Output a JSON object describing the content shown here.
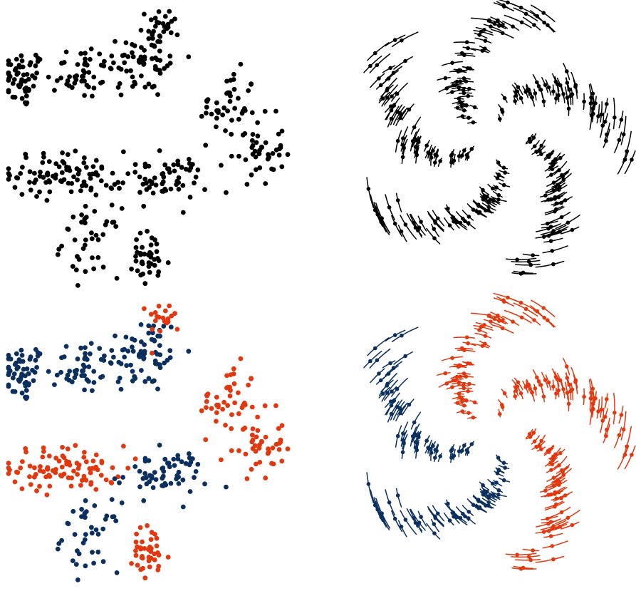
{
  "figure": {
    "colors": {
      "black": "#000000",
      "navy": "#0b2f5e",
      "orange": "#e2380f"
    }
  },
  "chart_data": [
    {
      "type": "scatter",
      "panel": "top-left",
      "color_mode": "single",
      "clusters": [
        {
          "cx": 0.06,
          "cy": 0.75,
          "sx": 0.04,
          "sy": 0.05,
          "n": 55,
          "color": "black"
        },
        {
          "cx": 0.26,
          "cy": 0.78,
          "sx": 0.06,
          "sy": 0.05,
          "n": 45,
          "color": "black"
        },
        {
          "cx": 0.48,
          "cy": 0.82,
          "sx": 0.07,
          "sy": 0.07,
          "n": 70,
          "color": "black"
        },
        {
          "cx": 0.56,
          "cy": 0.95,
          "sx": 0.03,
          "sy": 0.03,
          "n": 20,
          "color": "black"
        },
        {
          "cx": 0.78,
          "cy": 0.66,
          "sx": 0.05,
          "sy": 0.06,
          "n": 40,
          "color": "black"
        },
        {
          "cx": 0.88,
          "cy": 0.5,
          "sx": 0.05,
          "sy": 0.06,
          "n": 45,
          "color": "black"
        },
        {
          "cx": 0.22,
          "cy": 0.42,
          "sx": 0.1,
          "sy": 0.04,
          "n": 90,
          "color": "black"
        },
        {
          "cx": 0.55,
          "cy": 0.4,
          "sx": 0.08,
          "sy": 0.04,
          "n": 60,
          "color": "black"
        },
        {
          "cx": 0.3,
          "cy": 0.18,
          "sx": 0.05,
          "sy": 0.06,
          "n": 40,
          "color": "black"
        },
        {
          "cx": 0.5,
          "cy": 0.12,
          "sx": 0.04,
          "sy": 0.05,
          "n": 40,
          "color": "black"
        }
      ]
    },
    {
      "type": "line",
      "panel": "top-right",
      "color_mode": "single",
      "center": [
        0.52,
        0.47
      ],
      "arms": [
        {
          "phase": 0.0,
          "color": "black"
        },
        {
          "phase": 1.2566,
          "color": "black"
        },
        {
          "phase": 2.5133,
          "color": "black"
        },
        {
          "phase": 3.7699,
          "color": "black"
        },
        {
          "phase": 5.0265,
          "color": "black"
        }
      ]
    },
    {
      "type": "scatter",
      "panel": "bottom-left",
      "color_mode": "two-class",
      "clusters": [
        {
          "cx": 0.06,
          "cy": 0.75,
          "sx": 0.04,
          "sy": 0.05,
          "n": 55,
          "color": "navy"
        },
        {
          "cx": 0.26,
          "cy": 0.78,
          "sx": 0.06,
          "sy": 0.05,
          "n": 45,
          "color": "navy"
        },
        {
          "cx": 0.48,
          "cy": 0.82,
          "sx": 0.07,
          "sy": 0.07,
          "n": 70,
          "color": "navy"
        },
        {
          "cx": 0.56,
          "cy": 0.95,
          "sx": 0.03,
          "sy": 0.03,
          "n": 20,
          "color": "orange"
        },
        {
          "cx": 0.78,
          "cy": 0.66,
          "sx": 0.05,
          "sy": 0.06,
          "n": 40,
          "color": "orange"
        },
        {
          "cx": 0.88,
          "cy": 0.5,
          "sx": 0.05,
          "sy": 0.06,
          "n": 45,
          "color": "orange"
        },
        {
          "cx": 0.22,
          "cy": 0.42,
          "sx": 0.1,
          "sy": 0.04,
          "n": 90,
          "color": "orange"
        },
        {
          "cx": 0.55,
          "cy": 0.4,
          "sx": 0.08,
          "sy": 0.04,
          "n": 60,
          "color": "navy"
        },
        {
          "cx": 0.3,
          "cy": 0.18,
          "sx": 0.05,
          "sy": 0.06,
          "n": 40,
          "color": "navy"
        },
        {
          "cx": 0.5,
          "cy": 0.12,
          "sx": 0.04,
          "sy": 0.05,
          "n": 40,
          "color": "orange"
        }
      ]
    },
    {
      "type": "line",
      "panel": "bottom-right",
      "color_mode": "two-class",
      "center": [
        0.52,
        0.47
      ],
      "arms": [
        {
          "phase": 0.0,
          "color": "orange"
        },
        {
          "phase": 1.2566,
          "color": "navy"
        },
        {
          "phase": 2.5133,
          "color": "navy"
        },
        {
          "phase": 3.7699,
          "color": "orange"
        },
        {
          "phase": 5.0265,
          "color": "orange"
        }
      ]
    }
  ]
}
